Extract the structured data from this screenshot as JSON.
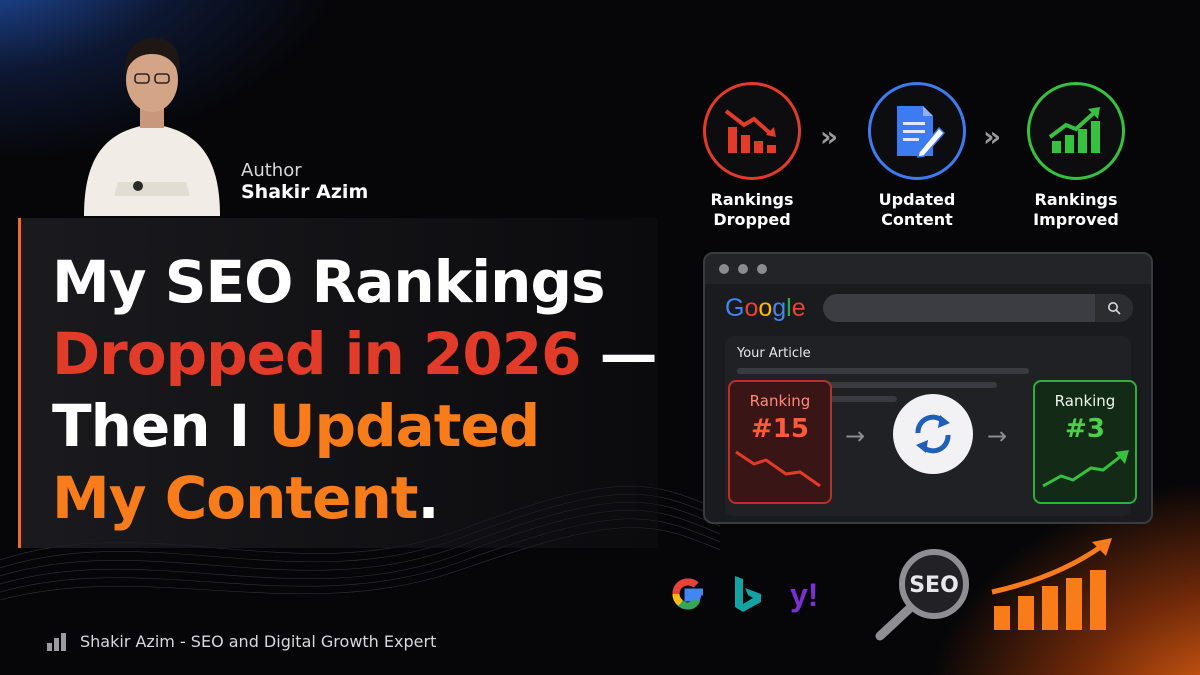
{
  "author": {
    "label": "Author",
    "name": "Shakir Azim"
  },
  "headline": {
    "line1": "My SEO Rankings",
    "line2_red": "Dropped in 2026",
    "line2_white": " —",
    "line3_white": "Then I ",
    "line3_orange": "Updated",
    "line4_orange": "My Content",
    "line4_white": "."
  },
  "flow": {
    "steps": [
      {
        "label_line1": "Rankings",
        "label_line2": "Dropped",
        "icon": "declining-chart-icon",
        "color": "#e23b2a"
      },
      {
        "label_line1": "Updated",
        "label_line2": "Content",
        "icon": "document-edit-icon",
        "color": "#3d7bf0"
      },
      {
        "label_line1": "Rankings",
        "label_line2": "Improved",
        "icon": "growth-chart-icon",
        "color": "#36c23e"
      }
    ],
    "chevron": "»"
  },
  "browser": {
    "search_brand": "Google",
    "article_title": "Your Article",
    "before": {
      "label": "Ranking",
      "value": "#15"
    },
    "after": {
      "label": "Ranking",
      "value": "#3"
    }
  },
  "seo_badge": "SEO",
  "footer": {
    "text": "Shakir Azim - SEO and Digital Growth Expert"
  },
  "colors": {
    "accent_orange": "#f97c1a",
    "accent_red": "#e23b2a",
    "accent_green": "#36c23e",
    "accent_blue": "#3d7bf0"
  }
}
